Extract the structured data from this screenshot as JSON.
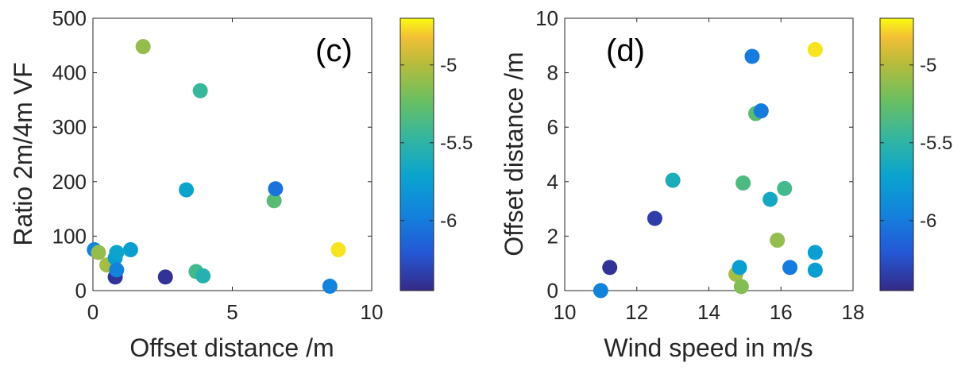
{
  "chart_data": [
    {
      "type": "scatter",
      "panel_label": "(c)",
      "xlabel": "Offset distance /m",
      "ylabel": "Ratio 2m/4m VF",
      "xlim": [
        0,
        10
      ],
      "ylim": [
        0,
        500
      ],
      "xticks": [
        0,
        5,
        10
      ],
      "yticks": [
        0,
        100,
        200,
        300,
        400,
        500
      ],
      "colorbar": {
        "range": [
          -6.45,
          -4.7
        ],
        "ticks": [
          -6,
          -5.5,
          -5
        ],
        "tick_labels": [
          "-6",
          "-5.5",
          "-5"
        ],
        "colormap": "parula"
      },
      "points": [
        {
          "x": 0.05,
          "y": 75,
          "c": -5.95
        },
        {
          "x": 0.2,
          "y": 70,
          "c": -5.1
        },
        {
          "x": 0.5,
          "y": 47,
          "c": -5.05
        },
        {
          "x": 0.8,
          "y": 60,
          "c": -5.75
        },
        {
          "x": 0.85,
          "y": 70,
          "c": -5.7
        },
        {
          "x": 0.8,
          "y": 25,
          "c": -6.4
        },
        {
          "x": 0.85,
          "y": 38,
          "c": -5.95
        },
        {
          "x": 1.35,
          "y": 75,
          "c": -5.75
        },
        {
          "x": 1.8,
          "y": 448,
          "c": -5.1
        },
        {
          "x": 2.6,
          "y": 25,
          "c": -6.4
        },
        {
          "x": 3.35,
          "y": 185,
          "c": -5.7
        },
        {
          "x": 3.7,
          "y": 35,
          "c": -5.4
        },
        {
          "x": 3.85,
          "y": 367,
          "c": -5.45
        },
        {
          "x": 3.95,
          "y": 27,
          "c": -5.55
        },
        {
          "x": 6.5,
          "y": 165,
          "c": -5.3
        },
        {
          "x": 6.55,
          "y": 187,
          "c": -6.05
        },
        {
          "x": 8.5,
          "y": 8,
          "c": -5.95
        },
        {
          "x": 8.8,
          "y": 75,
          "c": -4.75
        }
      ]
    },
    {
      "type": "scatter",
      "panel_label": "(d)",
      "xlabel": "Wind speed in m/s",
      "ylabel": "Offset distance /m",
      "xlim": [
        10,
        18
      ],
      "ylim": [
        0,
        10
      ],
      "xticks": [
        10,
        12,
        14,
        16,
        18
      ],
      "yticks": [
        0,
        2,
        4,
        6,
        8,
        10
      ],
      "colorbar": {
        "range": [
          -6.45,
          -4.7
        ],
        "ticks": [
          -6,
          -5.5,
          -5
        ],
        "tick_labels": [
          "-6",
          "-5.5",
          "-5"
        ],
        "colormap": "parula"
      },
      "points": [
        {
          "x": 11.0,
          "y": 0.0,
          "c": -5.95
        },
        {
          "x": 11.25,
          "y": 0.85,
          "c": -6.4
        },
        {
          "x": 12.5,
          "y": 2.65,
          "c": -6.35
        },
        {
          "x": 13.0,
          "y": 4.05,
          "c": -5.6
        },
        {
          "x": 14.75,
          "y": 0.6,
          "c": -5.05
        },
        {
          "x": 14.85,
          "y": 0.85,
          "c": -5.75
        },
        {
          "x": 14.9,
          "y": 0.15,
          "c": -5.15
        },
        {
          "x": 14.95,
          "y": 3.95,
          "c": -5.35
        },
        {
          "x": 15.2,
          "y": 8.6,
          "c": -6.0
        },
        {
          "x": 15.3,
          "y": 6.5,
          "c": -5.3
        },
        {
          "x": 15.45,
          "y": 6.6,
          "c": -6.0
        },
        {
          "x": 15.7,
          "y": 3.35,
          "c": -5.65
        },
        {
          "x": 15.9,
          "y": 1.85,
          "c": -5.1
        },
        {
          "x": 16.1,
          "y": 3.75,
          "c": -5.4
        },
        {
          "x": 16.25,
          "y": 0.85,
          "c": -6.0
        },
        {
          "x": 16.95,
          "y": 1.4,
          "c": -5.75
        },
        {
          "x": 16.95,
          "y": 0.75,
          "c": -5.75
        },
        {
          "x": 16.95,
          "y": 8.85,
          "c": -4.75
        }
      ]
    }
  ]
}
